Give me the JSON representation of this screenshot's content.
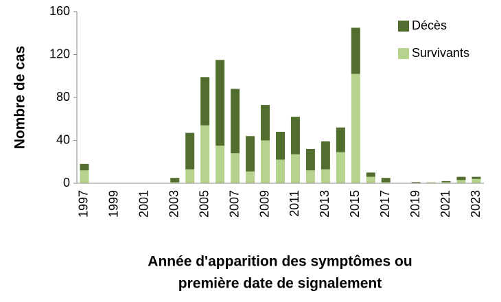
{
  "chart_data": {
    "type": "stacked_bar",
    "ylabel": "Nombre de cas",
    "xlabel": [
      "Année d'apparition des symptômes ou",
      "première date de signalement"
    ],
    "categories": [
      "1997",
      null,
      "1999",
      null,
      "2001",
      null,
      "2003",
      null,
      "2005",
      null,
      "2007",
      null,
      "2009",
      null,
      "2011",
      null,
      "2013",
      null,
      "2015",
      null,
      "2017",
      null,
      "2019",
      null,
      "2021",
      null,
      "2023"
    ],
    "series": [
      {
        "name": "Survivants",
        "color": "#b5d38c",
        "values": [
          12,
          0,
          0,
          0,
          0,
          0,
          1,
          13,
          54,
          35,
          28,
          11,
          40,
          22,
          27,
          12,
          13,
          29,
          102,
          6,
          1,
          0,
          0,
          1,
          1,
          3,
          4
        ]
      },
      {
        "name": "Décès",
        "color": "#516e2e",
        "values": [
          6,
          0,
          0,
          0,
          0,
          0,
          4,
          34,
          45,
          80,
          60,
          33,
          33,
          26,
          35,
          20,
          26,
          23,
          43,
          4,
          4,
          0,
          1,
          0,
          1,
          3,
          2
        ]
      }
    ],
    "ylim": [
      0,
      160
    ],
    "yticks": [
      0,
      40,
      80,
      120,
      160
    ],
    "grid": false,
    "legend": "upper right"
  }
}
